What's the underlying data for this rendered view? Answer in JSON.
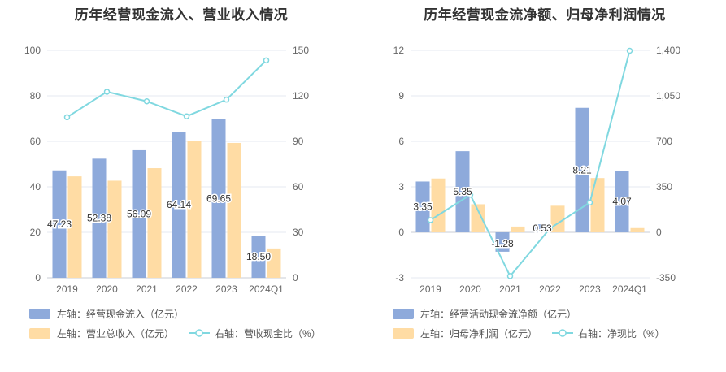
{
  "chart_data": [
    {
      "type": "bar",
      "title": "历年经营现金流入、营业收入情况",
      "categories": [
        "2019",
        "2020",
        "2021",
        "2022",
        "2023",
        "2024Q1"
      ],
      "left_axis": {
        "min": 0,
        "max": 100,
        "ticks": [
          "0",
          "20",
          "40",
          "60",
          "80",
          "100"
        ]
      },
      "right_axis": {
        "min": 0,
        "max": 150,
        "ticks": [
          "0",
          "30",
          "60",
          "90",
          "120",
          "150"
        ]
      },
      "series": [
        {
          "name": "左轴：经营现金流入（亿元）",
          "type": "bar",
          "axis": "left",
          "color": "#8eaadb",
          "values": [
            47.23,
            52.38,
            56.09,
            64.14,
            69.65,
            18.5
          ],
          "labels": [
            "47.23",
            "52.38",
            "56.09",
            "64.14",
            "69.65",
            "18.50"
          ]
        },
        {
          "name": "左轴：营业总收入（亿元）",
          "type": "bar",
          "axis": "left",
          "color": "#ffdca4",
          "values": [
            44.6,
            42.7,
            48.2,
            60.2,
            59.3,
            12.9
          ]
        },
        {
          "name": "右轴：营收现金比（%）",
          "type": "line",
          "axis": "right",
          "color": "#80d8e0",
          "values": [
            105.9,
            122.7,
            116.4,
            106.5,
            117.5,
            143.4
          ]
        }
      ],
      "grid": true
    },
    {
      "type": "bar",
      "title": "历年经营现金流净额、归母净利润情况",
      "categories": [
        "2019",
        "2020",
        "2021",
        "2022",
        "2023",
        "2024Q1"
      ],
      "left_axis": {
        "min": -3,
        "max": 12,
        "ticks": [
          "-3",
          "0",
          "3",
          "6",
          "9",
          "12"
        ]
      },
      "right_axis": {
        "min": -350,
        "max": 1400,
        "ticks": [
          "-350",
          "0",
          "350",
          "700",
          "1,050",
          "1,400"
        ]
      },
      "series": [
        {
          "name": "左轴：经营活动现金流净额（亿元）",
          "type": "bar",
          "axis": "left",
          "color": "#8eaadb",
          "values": [
            3.35,
            5.35,
            -1.28,
            0.53,
            8.21,
            4.07
          ],
          "labels": [
            "3.35",
            "5.35",
            "-1.28",
            "0.53",
            "8.21",
            "4.07"
          ]
        },
        {
          "name": "左轴：归母净利润（亿元）",
          "type": "bar",
          "axis": "left",
          "color": "#ffdca4",
          "values": [
            3.55,
            1.85,
            0.38,
            1.75,
            3.58,
            0.28
          ]
        },
        {
          "name": "右轴：净现比（%）",
          "type": "line",
          "axis": "right",
          "color": "#80d8e0",
          "values": [
            94,
            289,
            -337,
            30,
            229,
            1397
          ]
        }
      ],
      "grid": true
    }
  ]
}
